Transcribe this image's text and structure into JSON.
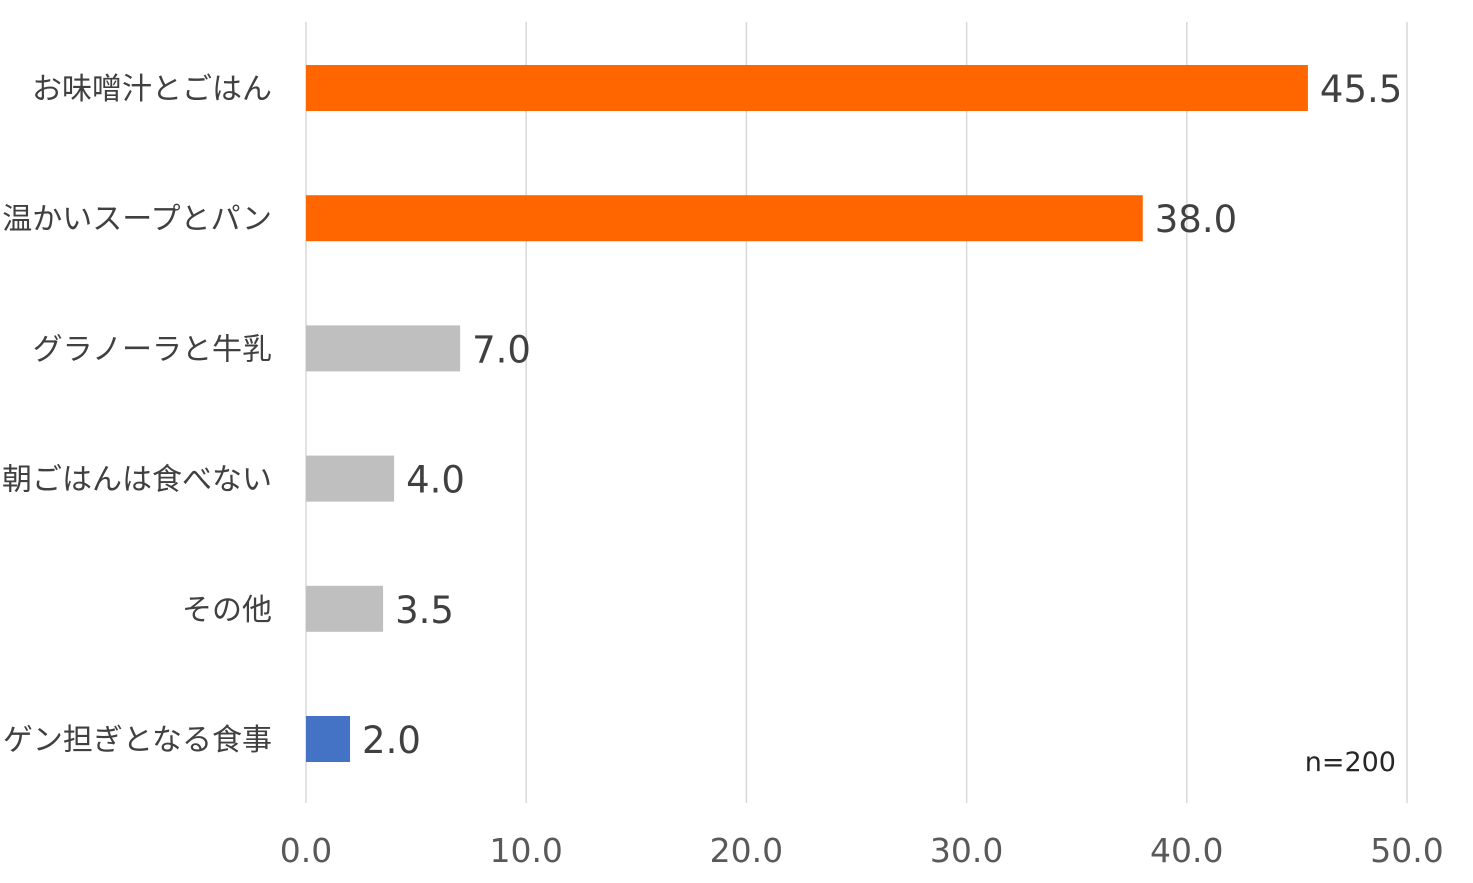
{
  "chart_data": {
    "type": "bar",
    "orientation": "horizontal",
    "categories": [
      "お味噌汁とごはん",
      "温かいスープとパン",
      "グラノーラと牛乳",
      "朝ごはんは食べない",
      "その他",
      "ゲン担ぎとなる食事"
    ],
    "values": [
      45.5,
      38.0,
      7.0,
      4.0,
      3.5,
      2.0
    ],
    "value_labels": [
      "45.5",
      "38.0",
      "7.0",
      "4.0",
      "3.5",
      "2.0"
    ],
    "bar_colors": [
      "#ff6600",
      "#ff6600",
      "#bfbfbf",
      "#bfbfbf",
      "#bfbfbf",
      "#4472c4"
    ],
    "xlim": [
      0,
      50
    ],
    "x_ticks": [
      0,
      10,
      20,
      30,
      40,
      50
    ],
    "x_tick_labels": [
      "0.0",
      "10.0",
      "20.0",
      "30.0",
      "40.0",
      "50.0"
    ],
    "grid": "vertical",
    "gridline_color": "#d9d9d9",
    "note": "n=200"
  }
}
